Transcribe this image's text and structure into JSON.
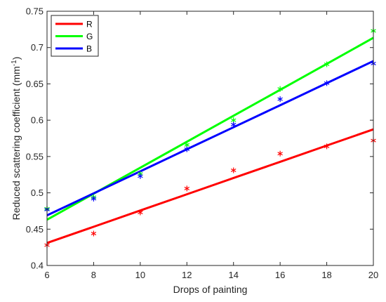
{
  "chart_data": {
    "type": "line",
    "title": "",
    "xlabel": "Drops of painting",
    "ylabel": {
      "main": "Reduced scattering coefficient (mm",
      "sup": "-1",
      "end": ")"
    },
    "xlim": [
      6,
      20
    ],
    "ylim": [
      0.4,
      0.75
    ],
    "xticks": [
      6,
      8,
      10,
      12,
      14,
      16,
      18,
      20
    ],
    "xtick_labels": [
      "6",
      "8",
      "10",
      "12",
      "14",
      "16",
      "18",
      "20"
    ],
    "yticks": [
      0.4,
      0.45,
      0.5,
      0.55,
      0.6,
      0.65,
      0.7,
      0.75
    ],
    "ytick_labels": [
      "0.4",
      "0.45",
      "0.5",
      "0.55",
      "0.6",
      "0.65",
      "0.7",
      "0.75"
    ],
    "grid": false,
    "legend_position": "top-left",
    "x": [
      6,
      8,
      10,
      12,
      14,
      16,
      18,
      20
    ],
    "series": [
      {
        "name": "R",
        "color": "#ff0000",
        "markers": [
          0.428,
          0.444,
          0.473,
          0.506,
          0.531,
          0.554,
          0.564,
          0.572
        ],
        "fit": [
          0.431,
          0.4533,
          0.4757,
          0.498,
          0.5204,
          0.5427,
          0.5651,
          0.5874
        ]
      },
      {
        "name": "G",
        "color": "#00ff00",
        "markers": [
          0.478,
          0.494,
          0.526,
          0.566,
          0.6,
          0.643,
          0.677,
          0.723
        ],
        "fit": [
          0.463,
          0.4988,
          0.5346,
          0.5703,
          0.6061,
          0.6418,
          0.6776,
          0.7134
        ]
      },
      {
        "name": "B",
        "color": "#0000ff",
        "markers": [
          0.477,
          0.492,
          0.523,
          0.56,
          0.594,
          0.629,
          0.651,
          0.678
        ],
        "fit": [
          0.469,
          0.4993,
          0.5296,
          0.56,
          0.5903,
          0.6206,
          0.651,
          0.6814
        ]
      }
    ]
  }
}
